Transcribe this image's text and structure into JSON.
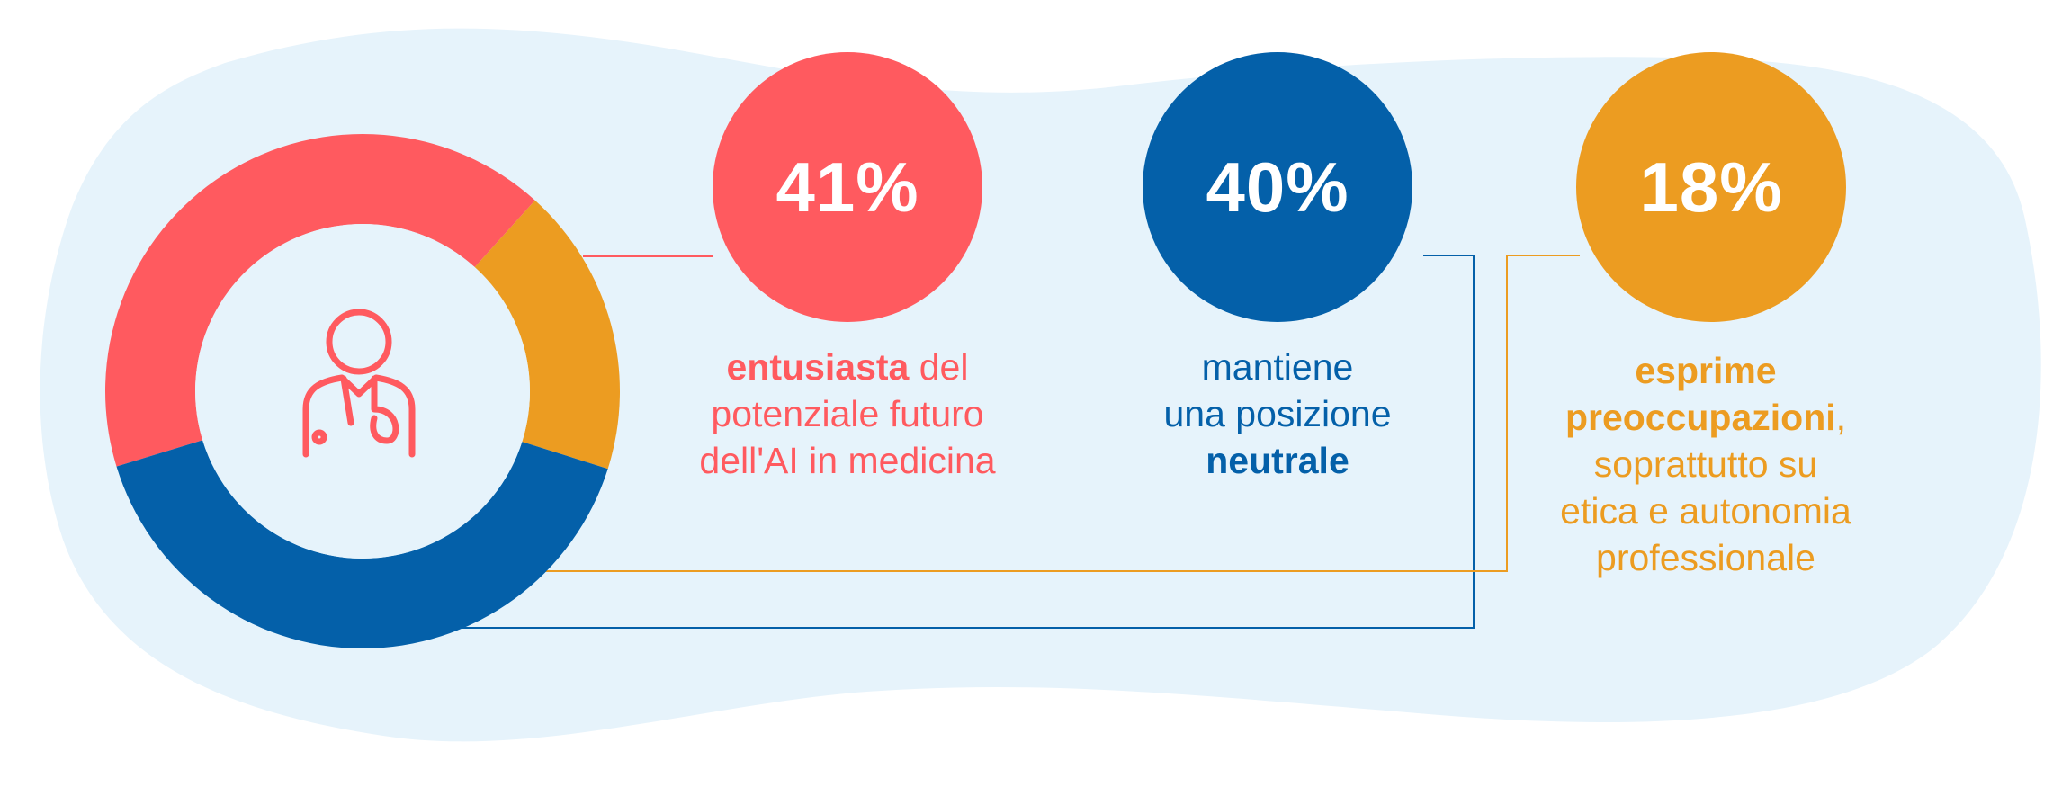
{
  "colors": {
    "background_blob": "#E6F3FB",
    "red": "#FF5A5F",
    "blue": "#0460A9",
    "orange": "#EC9C21"
  },
  "center_icon": "doctor-icon",
  "chart_data": {
    "type": "donut",
    "legend": "none",
    "segments": [
      {
        "value": 41,
        "label": "41%",
        "color": "#FF5A5F"
      },
      {
        "value": 18,
        "label": "18%",
        "color": "#EC9C21"
      },
      {
        "value": 40,
        "label": "40%",
        "color": "#0460A9"
      }
    ]
  },
  "stats": [
    {
      "value": "41%",
      "color": "#FF5A5F",
      "caption": {
        "bold": "entusiasta",
        "rest_1": " del",
        "rest_2": "potenziale futuro",
        "rest_3": "dell'AI in medicina"
      }
    },
    {
      "value": "40%",
      "color": "#0460A9",
      "caption": {
        "line_1": "mantiene",
        "line_2": "una posizione",
        "bold": "neutrale"
      }
    },
    {
      "value": "18%",
      "color": "#EC9C21",
      "caption": {
        "bold_1": "esprime",
        "bold_2": "preoccupazioni",
        "comma": ",",
        "line_3": "soprattutto su",
        "line_4": "etica e autonomia",
        "line_5": "professionale"
      }
    }
  ]
}
